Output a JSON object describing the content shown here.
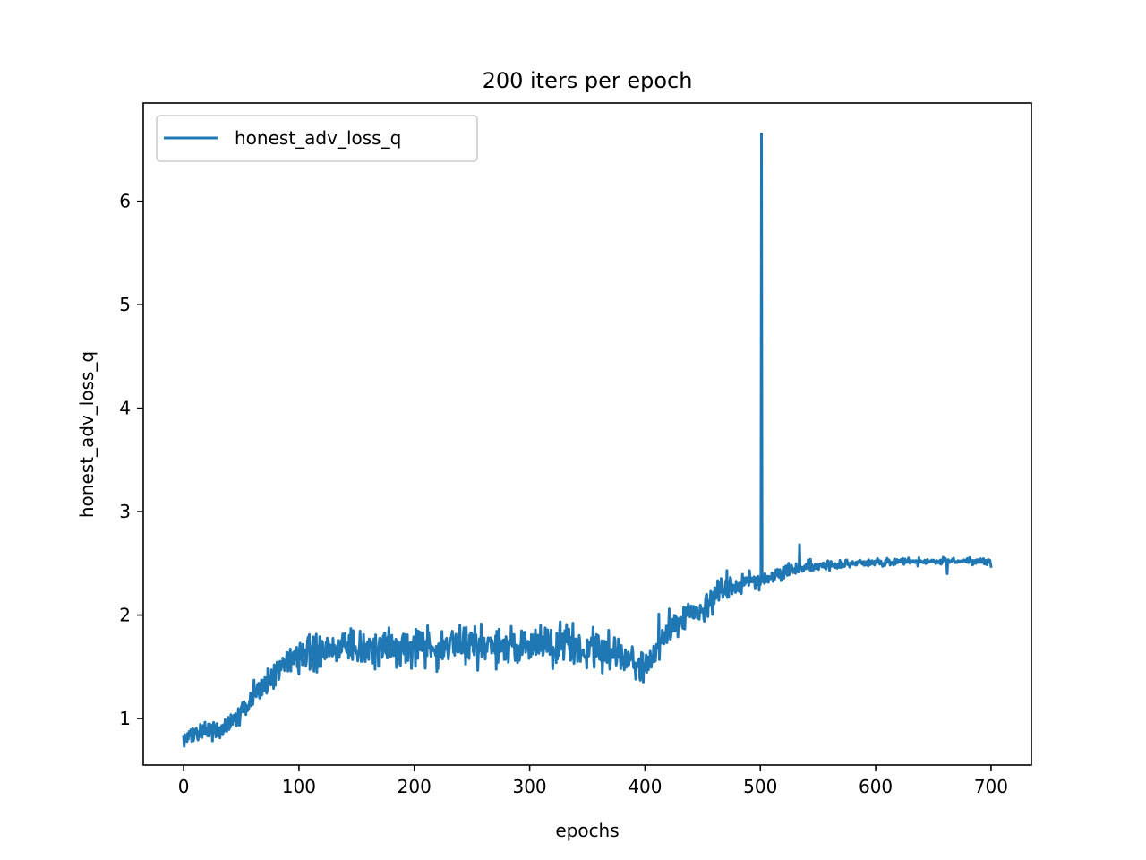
{
  "chart_data": {
    "type": "line",
    "title": "200 iters per epoch",
    "xlabel": "epochs",
    "ylabel": "honest_adv_loss_q",
    "xlim": [
      -35,
      735
    ],
    "ylim": [
      0.55,
      6.95
    ],
    "xticks": [
      0,
      100,
      200,
      300,
      400,
      500,
      600,
      700
    ],
    "yticks": [
      1,
      2,
      3,
      4,
      5,
      6
    ],
    "grid": false,
    "legend": {
      "position": "top-left",
      "entries": [
        "honest_adv_loss_q"
      ]
    },
    "series": [
      {
        "name": "honest_adv_loss_q",
        "color": "#1f77b4",
        "anchors": [
          [
            0,
            0.82
          ],
          [
            10,
            0.88
          ],
          [
            20,
            0.88
          ],
          [
            30,
            0.87
          ],
          [
            40,
            0.95
          ],
          [
            50,
            1.05
          ],
          [
            60,
            1.22
          ],
          [
            70,
            1.35
          ],
          [
            80,
            1.45
          ],
          [
            90,
            1.55
          ],
          [
            100,
            1.6
          ],
          [
            110,
            1.63
          ],
          [
            130,
            1.68
          ],
          [
            150,
            1.7
          ],
          [
            200,
            1.7
          ],
          [
            250,
            1.7
          ],
          [
            300,
            1.7
          ],
          [
            350,
            1.68
          ],
          [
            375,
            1.65
          ],
          [
            385,
            1.55
          ],
          [
            395,
            1.48
          ],
          [
            405,
            1.6
          ],
          [
            420,
            1.85
          ],
          [
            440,
            2.0
          ],
          [
            460,
            2.15
          ],
          [
            480,
            2.28
          ],
          [
            500,
            2.35
          ],
          [
            520,
            2.42
          ],
          [
            540,
            2.46
          ],
          [
            560,
            2.48
          ],
          [
            580,
            2.49
          ],
          [
            600,
            2.51
          ],
          [
            650,
            2.52
          ],
          [
            700,
            2.52
          ]
        ],
        "noise": [
          [
            0,
            0.05
          ],
          [
            60,
            0.07
          ],
          [
            90,
            0.1
          ],
          [
            100,
            0.13
          ],
          [
            380,
            0.13
          ],
          [
            400,
            0.13
          ],
          [
            480,
            0.08
          ],
          [
            520,
            0.05
          ],
          [
            560,
            0.03
          ],
          [
            600,
            0.025
          ],
          [
            700,
            0.02
          ]
        ],
        "spikes": [
          [
            501,
            6.65
          ],
          [
            534,
            2.68
          ],
          [
            471,
            2.43
          ],
          [
            145,
            1.87
          ],
          [
            245,
            1.88
          ],
          [
            332,
            1.91
          ],
          [
            412,
            2.01
          ],
          [
            392,
            1.38
          ],
          [
            22,
            0.83
          ],
          [
            662,
            2.4
          ],
          [
            700,
            2.47
          ]
        ]
      }
    ]
  }
}
